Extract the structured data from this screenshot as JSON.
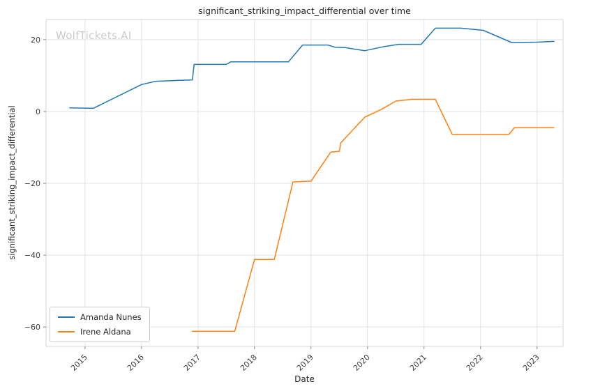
{
  "chart_data": {
    "type": "line",
    "title": "significant_striking_impact_differential over time",
    "xlabel": "Date",
    "ylabel": "significant_striking_impact_differential",
    "watermark": "WolfTickets.AI",
    "xlim": [
      2014.31,
      2023.46
    ],
    "ylim": [
      -65.4,
      25.6
    ],
    "xticks": [
      2015,
      2016,
      2017,
      2018,
      2019,
      2020,
      2021,
      2022,
      2023
    ],
    "xtick_labels": [
      "2015",
      "2016",
      "2017",
      "2018",
      "2019",
      "2020",
      "2021",
      "2022",
      "2023"
    ],
    "yticks": [
      20,
      0,
      -20,
      -40,
      -60
    ],
    "ytick_labels": [
      "20",
      "0",
      "−20",
      "−40",
      "−60"
    ],
    "grid": true,
    "legend_position": "lower left",
    "colors": {
      "grid": "#e3e3e3",
      "border": "#d4d4d4",
      "tick": "#8a8a8a",
      "text": "#3b3b3b",
      "watermark": "#cbcbcb"
    },
    "series": [
      {
        "name": "Amanda Nunes",
        "color": "#1f77b4",
        "points": [
          [
            2014.73,
            1.0
          ],
          [
            2015.15,
            0.9
          ],
          [
            2016.0,
            7.5
          ],
          [
            2016.25,
            8.4
          ],
          [
            2016.9,
            8.8
          ],
          [
            2016.93,
            13.1
          ],
          [
            2017.5,
            13.1
          ],
          [
            2017.58,
            13.8
          ],
          [
            2018.6,
            13.8
          ],
          [
            2018.85,
            18.5
          ],
          [
            2019.3,
            18.5
          ],
          [
            2019.42,
            17.9
          ],
          [
            2019.6,
            17.8
          ],
          [
            2019.95,
            16.9
          ],
          [
            2020.3,
            18.1
          ],
          [
            2020.55,
            18.7
          ],
          [
            2020.95,
            18.7
          ],
          [
            2021.2,
            23.2
          ],
          [
            2021.65,
            23.2
          ],
          [
            2022.05,
            22.6
          ],
          [
            2022.55,
            19.2
          ],
          [
            2023.0,
            19.3
          ],
          [
            2023.3,
            19.5
          ]
        ]
      },
      {
        "name": "Irene Aldana",
        "color": "#ff7f0e",
        "points": [
          [
            2016.9,
            -61.2
          ],
          [
            2017.65,
            -61.2
          ],
          [
            2018.0,
            -41.2
          ],
          [
            2018.35,
            -41.2
          ],
          [
            2018.68,
            -19.6
          ],
          [
            2019.0,
            -19.4
          ],
          [
            2019.35,
            -11.3
          ],
          [
            2019.5,
            -11.1
          ],
          [
            2019.53,
            -8.7
          ],
          [
            2019.95,
            -1.6
          ],
          [
            2020.25,
            0.6
          ],
          [
            2020.5,
            2.9
          ],
          [
            2020.8,
            3.4
          ],
          [
            2021.2,
            3.4
          ],
          [
            2021.5,
            -6.4
          ],
          [
            2022.5,
            -6.4
          ],
          [
            2022.6,
            -4.5
          ],
          [
            2023.3,
            -4.5
          ]
        ]
      }
    ]
  }
}
